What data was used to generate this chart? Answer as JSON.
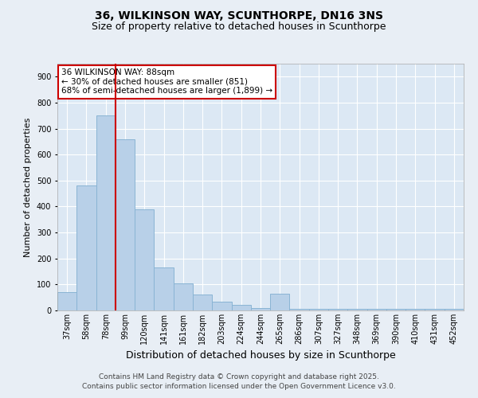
{
  "title_line1": "36, WILKINSON WAY, SCUNTHORPE, DN16 3NS",
  "title_line2": "Size of property relative to detached houses in Scunthorpe",
  "xlabel": "Distribution of detached houses by size in Scunthorpe",
  "ylabel": "Number of detached properties",
  "categories": [
    "37sqm",
    "58sqm",
    "78sqm",
    "99sqm",
    "120sqm",
    "141sqm",
    "161sqm",
    "182sqm",
    "203sqm",
    "224sqm",
    "244sqm",
    "265sqm",
    "286sqm",
    "307sqm",
    "327sqm",
    "348sqm",
    "369sqm",
    "390sqm",
    "410sqm",
    "431sqm",
    "452sqm"
  ],
  "values": [
    70,
    480,
    750,
    660,
    390,
    165,
    105,
    60,
    35,
    20,
    10,
    65,
    5,
    5,
    5,
    5,
    5,
    5,
    5,
    5,
    5
  ],
  "bar_color": "#b8d0e8",
  "bar_edge_color": "#8ab4d4",
  "vline_color": "#cc0000",
  "vline_x": 2.5,
  "annotation_text": "36 WILKINSON WAY: 88sqm\n← 30% of detached houses are smaller (851)\n68% of semi-detached houses are larger (1,899) →",
  "annotation_box_color": "#ffffff",
  "annotation_edge_color": "#cc0000",
  "ylim": [
    0,
    950
  ],
  "yticks": [
    0,
    100,
    200,
    300,
    400,
    500,
    600,
    700,
    800,
    900
  ],
  "bg_color": "#e8eef5",
  "plot_bg_color": "#dce8f4",
  "grid_color": "#ffffff",
  "footer_text": "Contains HM Land Registry data © Crown copyright and database right 2025.\nContains public sector information licensed under the Open Government Licence v3.0.",
  "title_fontsize": 10,
  "subtitle_fontsize": 9,
  "xlabel_fontsize": 9,
  "ylabel_fontsize": 8,
  "tick_fontsize": 7,
  "annotation_fontsize": 7.5,
  "footer_fontsize": 6.5
}
